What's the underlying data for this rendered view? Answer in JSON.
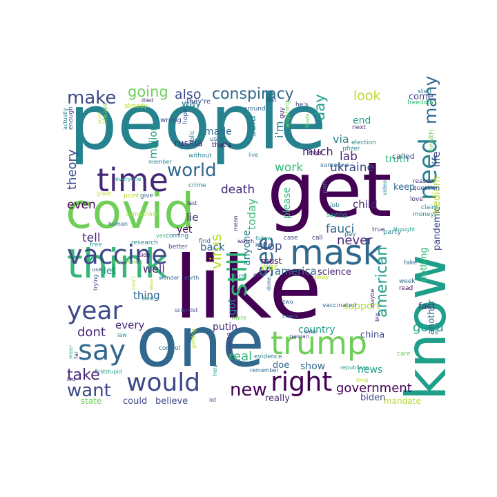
{
  "colors": {
    "background": "#ffffff",
    "palette": [
      "#440154",
      "#482878",
      "#3e4989",
      "#31688e",
      "#26828e",
      "#1f9e89",
      "#35b779",
      "#6ece58",
      "#b5de2b",
      "#fde725"
    ]
  },
  "words": [
    {
      "text": "people",
      "color": "#26828e"
    },
    {
      "text": "get",
      "color": "#440154"
    },
    {
      "text": "like",
      "color": "#440154"
    },
    {
      "text": "covid",
      "color": "#6ece58"
    },
    {
      "text": "know",
      "color": "#1f9e89"
    },
    {
      "text": "one",
      "color": "#31688e"
    },
    {
      "text": "think",
      "color": "#35b779"
    },
    {
      "text": "time",
      "color": "#482878"
    },
    {
      "text": "mask",
      "color": "#31688e"
    },
    {
      "text": "trump",
      "color": "#6ece58"
    },
    {
      "text": "vaccine",
      "color": "#3e4989"
    },
    {
      "text": "would",
      "color": "#3e4989"
    },
    {
      "text": "right",
      "color": "#440154"
    },
    {
      "text": "say",
      "color": "#31688e"
    },
    {
      "text": "year",
      "color": "#3e4989"
    },
    {
      "text": "need",
      "color": "#26828e"
    },
    {
      "text": "make",
      "color": "#3e4989"
    },
    {
      "text": "world",
      "color": "#31688e"
    },
    {
      "text": "conspiracy",
      "color": "#31688e"
    },
    {
      "text": "going",
      "color": "#6ece58"
    },
    {
      "text": "still",
      "color": "#35b779"
    },
    {
      "text": "see",
      "color": "#31688e"
    },
    {
      "text": "want",
      "color": "#3e4989"
    },
    {
      "text": "new",
      "color": "#440154"
    },
    {
      "text": "many",
      "color": "#31688e"
    },
    {
      "text": "also",
      "color": "#3e4989"
    },
    {
      "text": "look",
      "color": "#b5de2b"
    },
    {
      "text": "day",
      "color": "#1f9e89"
    },
    {
      "text": "take",
      "color": "#482878"
    },
    {
      "text": "virus",
      "color": "#b5de2b"
    },
    {
      "text": "death",
      "color": "#482878"
    },
    {
      "text": "ukraine",
      "color": "#3e4989"
    },
    {
      "text": "american",
      "color": "#1f9e89"
    },
    {
      "text": "dont",
      "color": "#482878"
    },
    {
      "text": "real",
      "color": "#35b779"
    },
    {
      "text": "good",
      "color": "#1f9e89"
    },
    {
      "text": "government",
      "color": "#440154"
    },
    {
      "text": "theory",
      "color": "#3e4989"
    },
    {
      "text": "even",
      "color": "#440154"
    },
    {
      "text": "tell",
      "color": "#482878"
    },
    {
      "text": "fauci",
      "color": "#31688e"
    },
    {
      "text": "never",
      "color": "#482878"
    },
    {
      "text": "stop",
      "color": "#3e4989"
    },
    {
      "text": "america",
      "color": "#31688e"
    },
    {
      "text": "work",
      "color": "#35b779"
    },
    {
      "text": "lab",
      "color": "#482878"
    },
    {
      "text": "truth",
      "color": "#35b779"
    },
    {
      "text": "via",
      "color": "#26828e"
    },
    {
      "text": "much",
      "color": "#482878"
    },
    {
      "text": "i'm",
      "color": "#26828e"
    },
    {
      "text": "russia",
      "color": "#482878"
    },
    {
      "text": "made",
      "color": "#31688e"
    },
    {
      "text": "way",
      "color": "#26828e"
    },
    {
      "text": "said",
      "color": "#26828e"
    },
    {
      "text": "million",
      "color": "#1f9e89"
    },
    {
      "text": "lie",
      "color": "#482878"
    },
    {
      "text": "today",
      "color": "#35b779"
    },
    {
      "text": "child",
      "color": "#482878"
    },
    {
      "text": "keep",
      "color": "#31688e"
    },
    {
      "text": "come",
      "color": "#3e4989"
    },
    {
      "text": "end",
      "color": "#1f9e89"
    },
    {
      "text": "life",
      "color": "#3e4989"
    },
    {
      "text": "medium",
      "color": "#b5de2b"
    },
    {
      "text": "pandemic",
      "color": "#3e4989"
    },
    {
      "text": "nothing",
      "color": "#35b779"
    },
    {
      "text": "back",
      "color": "#31688e"
    },
    {
      "text": "well",
      "color": "#482878"
    },
    {
      "text": "let",
      "color": "#26828e"
    },
    {
      "text": "thing",
      "color": "#31688e"
    },
    {
      "text": "every",
      "color": "#482878"
    },
    {
      "text": "yet",
      "color": "#440154"
    },
    {
      "text": "war",
      "color": "#b5de2b"
    },
    {
      "text": "got",
      "color": "#26828e"
    },
    {
      "text": "anyone",
      "color": "#26828e"
    },
    {
      "text": "please",
      "color": "#35b779"
    },
    {
      "text": "must",
      "color": "#440154"
    },
    {
      "text": "science",
      "color": "#482878"
    },
    {
      "text": "country",
      "color": "#1f9e89"
    },
    {
      "text": "china",
      "color": "#3e4989"
    },
    {
      "text": "putin",
      "color": "#482878"
    },
    {
      "text": "show",
      "color": "#31688e"
    },
    {
      "text": "doe",
      "color": "#31688e"
    },
    {
      "text": "news",
      "color": "#1f9e89"
    },
    {
      "text": "biden",
      "color": "#3e4989"
    },
    {
      "text": "really",
      "color": "#482878"
    },
    {
      "text": "could",
      "color": "#3e4989"
    },
    {
      "text": "believe",
      "color": "#3e4989"
    },
    {
      "text": "state",
      "color": "#6ece58"
    },
    {
      "text": "support",
      "color": "#b5de2b"
    },
    {
      "text": "fact",
      "color": "#482878"
    },
    {
      "text": "another",
      "color": "#31688e"
    },
    {
      "text": "mandate",
      "color": "#b5de2b"
    },
    {
      "text": "start",
      "color": "#26828e"
    },
    {
      "text": "freedom",
      "color": "#35b779"
    },
    {
      "text": "health",
      "color": "#6ece58"
    },
    {
      "text": "question",
      "color": "#3e4989"
    },
    {
      "text": "reason",
      "color": "#482878"
    },
    {
      "text": "party",
      "color": "#26828e"
    },
    {
      "text": "love",
      "color": "#482878"
    },
    {
      "text": "claim",
      "color": "#26828e"
    },
    {
      "text": "money",
      "color": "#26828e"
    },
    {
      "text": "fake",
      "color": "#31688e"
    },
    {
      "text": "week",
      "color": "#31688e"
    },
    {
      "text": "read",
      "color": "#440154"
    },
    {
      "text": "care",
      "color": "#6ece58"
    },
    {
      "text": "called",
      "color": "#3e4989"
    },
    {
      "text": "pfizer",
      "color": "#26828e"
    },
    {
      "text": "election",
      "color": "#26828e"
    },
    {
      "text": "thought",
      "color": "#1f9e89"
    },
    {
      "text": "true",
      "color": "#482878"
    },
    {
      "text": "pay",
      "color": "#31688e"
    },
    {
      "text": "video",
      "color": "#26828e"
    },
    {
      "text": "saying",
      "color": "#1f9e89"
    },
    {
      "text": "job",
      "color": "#26828e"
    },
    {
      "text": "part",
      "color": "#26828e"
    },
    {
      "text": "someone",
      "color": "#31688e"
    },
    {
      "text": "ever",
      "color": "#440154"
    },
    {
      "text": "next",
      "color": "#482878"
    },
    {
      "text": "thats",
      "color": "#6ece58"
    },
    {
      "text": "anything",
      "color": "#6ece58"
    },
    {
      "text": "he's",
      "color": "#3e4989"
    },
    {
      "text": "flat",
      "color": "#3e4989"
    },
    {
      "text": "around",
      "color": "#31688e"
    },
    {
      "text": "guy",
      "color": "#482878"
    },
    {
      "text": "live",
      "color": "#26828e"
    },
    {
      "text": "they're",
      "color": "#3e4989"
    },
    {
      "text": "that's",
      "color": "#440154"
    },
    {
      "text": "used",
      "color": "#31688e"
    },
    {
      "text": "public",
      "color": "#31688e"
    },
    {
      "text": "without",
      "color": "#26828e"
    },
    {
      "text": "put",
      "color": "#31688e"
    },
    {
      "text": "hope",
      "color": "#3e4989"
    },
    {
      "text": "wrong",
      "color": "#3e4989"
    },
    {
      "text": "died",
      "color": "#482878"
    },
    {
      "text": "already",
      "color": "#b5de2b"
    },
    {
      "text": "sure",
      "color": "#b5de2b"
    },
    {
      "text": "always",
      "color": "#6ece58"
    },
    {
      "text": "enough",
      "color": "#3e4989"
    },
    {
      "text": "actually",
      "color": "#26828e"
    },
    {
      "text": "member",
      "color": "#26828e"
    },
    {
      "text": "everyone",
      "color": "#1f9e89"
    },
    {
      "text": "crime",
      "color": "#26828e"
    },
    {
      "text": "great",
      "color": "#b5de2b"
    },
    {
      "text": "point",
      "color": "#b5de2b"
    },
    {
      "text": "give",
      "color": "#31688e"
    },
    {
      "text": "last",
      "color": "#482878"
    },
    {
      "text": "something",
      "color": "#b5de2b"
    },
    {
      "text": "human",
      "color": "#31688e"
    },
    {
      "text": "coming",
      "color": "#26828e"
    },
    {
      "text": "yes",
      "color": "#35b779"
    },
    {
      "text": "free",
      "color": "#1f9e89"
    },
    {
      "text": "research",
      "color": "#26828e"
    },
    {
      "text": "better",
      "color": "#3e4989"
    },
    {
      "text": "find",
      "color": "#31688e"
    },
    {
      "text": "watch",
      "color": "#482878"
    },
    {
      "text": "follow",
      "color": "#1f9e89"
    },
    {
      "text": "hey",
      "color": "#31688e"
    },
    {
      "text": "case",
      "color": "#3e4989"
    },
    {
      "text": "call",
      "color": "#482878"
    },
    {
      "text": "side",
      "color": "#440154"
    },
    {
      "text": "everything",
      "color": "#6ece58"
    },
    {
      "text": "use",
      "color": "#3e4989"
    },
    {
      "text": "wonder",
      "color": "#31688e"
    },
    {
      "text": "earth",
      "color": "#31688e"
    },
    {
      "text": "can't",
      "color": "#b5de2b"
    },
    {
      "text": "else",
      "color": "#b5de2b"
    },
    {
      "text": "trying",
      "color": "#3e4989"
    },
    {
      "text": "best",
      "color": "#26828e"
    },
    {
      "text": "scientist",
      "color": "#3e4989"
    },
    {
      "text": "white",
      "color": "#6ece58"
    },
    {
      "text": "since",
      "color": "#1f9e89"
    },
    {
      "text": "god",
      "color": "#482878"
    },
    {
      "text": "done",
      "color": "#31688e"
    },
    {
      "text": "two",
      "color": "#31688e"
    },
    {
      "text": "away",
      "color": "#b5de2b"
    },
    {
      "text": "vaccinated",
      "color": "#31688e"
    },
    {
      "text": "maybe",
      "color": "#482878"
    },
    {
      "text": "big",
      "color": "#482878"
    },
    {
      "text": "man",
      "color": "#26828e"
    },
    {
      "text": "law",
      "color": "#26828e"
    },
    {
      "text": "control",
      "color": "#31688e"
    },
    {
      "text": "getting",
      "color": "#b5de2b"
    },
    {
      "text": "check",
      "color": "#31688e"
    },
    {
      "text": "russian",
      "color": "#3e4989"
    },
    {
      "text": "data",
      "color": "#3e4989"
    },
    {
      "text": "wear",
      "color": "#35b779"
    },
    {
      "text": "far",
      "color": "#3e4989"
    },
    {
      "text": "first",
      "color": "#26828e"
    },
    {
      "text": "stupid",
      "color": "#1f9e89"
    },
    {
      "text": "covid19",
      "color": "#482878"
    },
    {
      "text": "evidence",
      "color": "#26828e"
    },
    {
      "text": "republican",
      "color": "#1f9e89"
    },
    {
      "text": "long",
      "color": "#b5de2b"
    },
    {
      "text": "kid",
      "color": "#482878"
    },
    {
      "text": "help",
      "color": "#1f9e89"
    },
    {
      "text": "remember",
      "color": "#31688e"
    },
    {
      "text": "lot",
      "color": "#3e4989"
    },
    {
      "text": "mean",
      "color": "#482878"
    },
    {
      "text": "president",
      "color": "#3e4989"
    },
    {
      "text": "school",
      "color": "#31688e"
    }
  ]
}
